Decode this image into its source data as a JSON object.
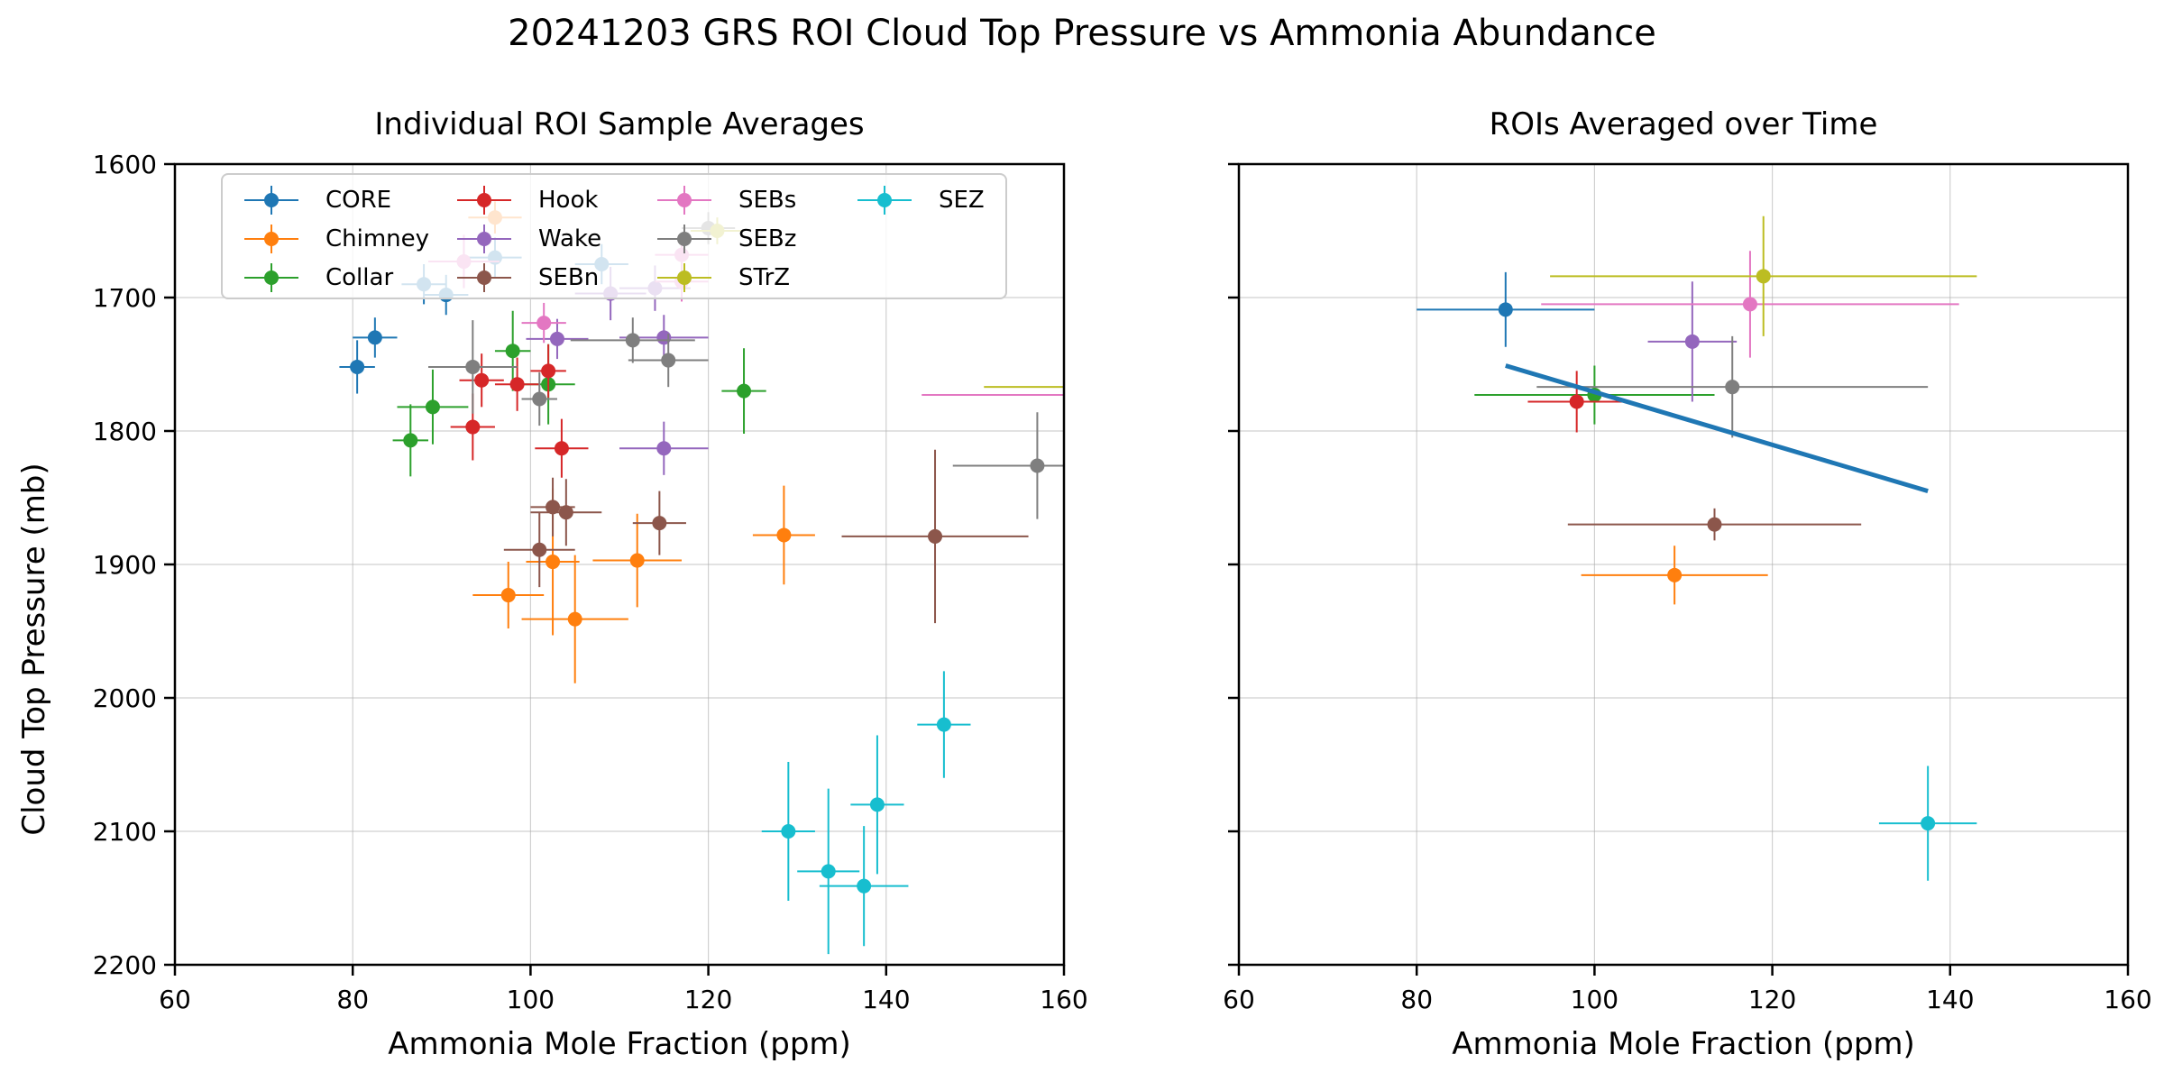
{
  "figure": {
    "suptitle": "20241203 GRS ROI Cloud Top Pressure vs Ammonia Abundance"
  },
  "colors": {
    "CORE": "#1f77b4",
    "Chimney": "#ff7f0e",
    "Collar": "#2ca02c",
    "Hook": "#d62728",
    "Wake": "#9467bd",
    "SEBn": "#8c564b",
    "SEBs": "#e377c2",
    "SEBz": "#7f7f7f",
    "STrZ": "#bcbd22",
    "SEZ": "#17becf",
    "fit": "#1f77b4"
  },
  "legend": {
    "placement": "top-left",
    "columns": 4,
    "entries": [
      "CORE",
      "Chimney",
      "Collar",
      "Hook",
      "Wake",
      "SEBn",
      "SEBs",
      "SEBz",
      "STrZ",
      "SEZ"
    ]
  },
  "chart_data": [
    {
      "type": "scatter",
      "title": "Individual ROI Sample Averages",
      "xlabel": "Ammonia Mole Fraction (ppm)",
      "ylabel": "Cloud Top Pressure (mb)",
      "xlim": [
        60,
        160
      ],
      "ylim": [
        2200,
        1600
      ],
      "xticks": [
        "60",
        "80",
        "100",
        "120",
        "140",
        "160"
      ],
      "yticks": [
        "1600",
        "1700",
        "1800",
        "1900",
        "2000",
        "2100",
        "2200"
      ],
      "grid": true,
      "series": [
        {
          "name": "CORE",
          "points": [
            {
              "x": 80.5,
              "y": 1752,
              "xerr": 2,
              "yerr": 20
            },
            {
              "x": 82.5,
              "y": 1730,
              "xerr": 2.5,
              "yerr": 15
            },
            {
              "x": 88,
              "y": 1690,
              "xerr": 2.5,
              "yerr": 15
            },
            {
              "x": 90.5,
              "y": 1698,
              "xerr": 2.5,
              "yerr": 15
            },
            {
              "x": 96,
              "y": 1670,
              "xerr": 3,
              "yerr": 15
            },
            {
              "x": 108,
              "y": 1675,
              "xerr": 3,
              "yerr": 15
            }
          ]
        },
        {
          "name": "Chimney",
          "points": [
            {
              "x": 97.5,
              "y": 1923,
              "xerr": 4,
              "yerr": 25
            },
            {
              "x": 102.5,
              "y": 1898,
              "xerr": 3,
              "yerr": 55
            },
            {
              "x": 105,
              "y": 1941,
              "xerr": 6,
              "yerr": 48
            },
            {
              "x": 112,
              "y": 1897,
              "xerr": 5,
              "yerr": 35
            },
            {
              "x": 128.5,
              "y": 1878,
              "xerr": 3.5,
              "yerr": 37
            },
            {
              "x": 96,
              "y": 1640,
              "xerr": 3,
              "yerr": 12
            }
          ]
        },
        {
          "name": "Collar",
          "points": [
            {
              "x": 86.5,
              "y": 1807,
              "xerr": 2,
              "yerr": 27
            },
            {
              "x": 89,
              "y": 1782,
              "xerr": 4,
              "yerr": 28
            },
            {
              "x": 98,
              "y": 1740,
              "xerr": 2,
              "yerr": 30
            },
            {
              "x": 102,
              "y": 1765,
              "xerr": 3,
              "yerr": 30
            },
            {
              "x": 124,
              "y": 1770,
              "xerr": 2.5,
              "yerr": 32
            }
          ]
        },
        {
          "name": "Hook",
          "points": [
            {
              "x": 93.5,
              "y": 1797,
              "xerr": 2.5,
              "yerr": 25
            },
            {
              "x": 94.5,
              "y": 1762,
              "xerr": 2.5,
              "yerr": 20
            },
            {
              "x": 98.5,
              "y": 1765,
              "xerr": 2.5,
              "yerr": 20
            },
            {
              "x": 102,
              "y": 1755,
              "xerr": 2,
              "yerr": 20
            },
            {
              "x": 103.5,
              "y": 1813,
              "xerr": 3,
              "yerr": 22
            }
          ]
        },
        {
          "name": "Wake",
          "points": [
            {
              "x": 103,
              "y": 1731,
              "xerr": 3.5,
              "yerr": 15
            },
            {
              "x": 115,
              "y": 1813,
              "xerr": 5,
              "yerr": 20
            },
            {
              "x": 115,
              "y": 1730,
              "xerr": 5,
              "yerr": 17
            },
            {
              "x": 109,
              "y": 1697,
              "xerr": 4,
              "yerr": 20
            },
            {
              "x": 114,
              "y": 1693,
              "xerr": 4,
              "yerr": 17
            }
          ]
        },
        {
          "name": "SEBn",
          "points": [
            {
              "x": 101,
              "y": 1889,
              "xerr": 4,
              "yerr": 28
            },
            {
              "x": 102.5,
              "y": 1857,
              "xerr": 2.5,
              "yerr": 22
            },
            {
              "x": 104,
              "y": 1861,
              "xerr": 4,
              "yerr": 25
            },
            {
              "x": 114.5,
              "y": 1869,
              "xerr": 3,
              "yerr": 24
            },
            {
              "x": 145.5,
              "y": 1879,
              "xerr": 10.5,
              "yerr": 65
            }
          ]
        },
        {
          "name": "SEBs",
          "points": [
            {
              "x": 92.5,
              "y": 1673,
              "xerr": 4,
              "yerr": 20
            },
            {
              "x": 101.5,
              "y": 1719,
              "xerr": 2.5,
              "yerr": 15
            },
            {
              "x": 117,
              "y": 1668,
              "xerr": 3,
              "yerr": 15
            },
            {
              "x": 117,
              "y": 1688,
              "xerr": 3,
              "yerr": 15
            },
            {
              "x": 165,
              "y": 1773,
              "xerr": 21,
              "yerr": 20
            }
          ]
        },
        {
          "name": "SEBz",
          "points": [
            {
              "x": 93.5,
              "y": 1752,
              "xerr": 5,
              "yerr": 35
            },
            {
              "x": 101,
              "y": 1776,
              "xerr": 2,
              "yerr": 20
            },
            {
              "x": 111.5,
              "y": 1732,
              "xerr": 7,
              "yerr": 17
            },
            {
              "x": 115.5,
              "y": 1747,
              "xerr": 4.5,
              "yerr": 20
            },
            {
              "x": 157,
              "y": 1826,
              "xerr": 9.5,
              "yerr": 40
            },
            {
              "x": 120,
              "y": 1648,
              "xerr": 3,
              "yerr": 12
            }
          ]
        },
        {
          "name": "STrZ",
          "points": [
            {
              "x": 165,
              "y": 1767,
              "xerr": 14,
              "yerr": 12
            },
            {
              "x": 121,
              "y": 1650,
              "xerr": 3,
              "yerr": 10
            }
          ]
        },
        {
          "name": "SEZ",
          "points": [
            {
              "x": 129,
              "y": 2100,
              "xerr": 3,
              "yerr": 52
            },
            {
              "x": 133.5,
              "y": 2130,
              "xerr": 3.5,
              "yerr": 62
            },
            {
              "x": 137.5,
              "y": 2141,
              "xerr": 5,
              "yerr": 45
            },
            {
              "x": 139,
              "y": 2080,
              "xerr": 3,
              "yerr": 52
            },
            {
              "x": 146.5,
              "y": 2020,
              "xerr": 3,
              "yerr": 40
            }
          ]
        }
      ]
    },
    {
      "type": "scatter",
      "title": "ROIs Averaged over Time",
      "xlabel": "Ammonia Mole Fraction (ppm)",
      "ylabel": "",
      "xlim": [
        60,
        160
      ],
      "ylim": [
        2200,
        1600
      ],
      "xticks": [
        "60",
        "80",
        "100",
        "120",
        "140",
        "160"
      ],
      "yticks": [],
      "grid": true,
      "series": [
        {
          "name": "CORE",
          "points": [
            {
              "x": 90,
              "y": 1709,
              "xerr": 10,
              "yerr": 28
            }
          ]
        },
        {
          "name": "Chimney",
          "points": [
            {
              "x": 109,
              "y": 1908,
              "xerr": 10.5,
              "yerr": 22
            }
          ]
        },
        {
          "name": "Collar",
          "points": [
            {
              "x": 100,
              "y": 1773,
              "xerr": 13.5,
              "yerr": 22
            }
          ]
        },
        {
          "name": "Hook",
          "points": [
            {
              "x": 98,
              "y": 1778,
              "xerr": 5.5,
              "yerr": 23
            }
          ]
        },
        {
          "name": "Wake",
          "points": [
            {
              "x": 111,
              "y": 1733,
              "xerr": 5,
              "yerr": 45
            }
          ]
        },
        {
          "name": "SEBn",
          "points": [
            {
              "x": 113.5,
              "y": 1870,
              "xerr": 16.5,
              "yerr": 12
            }
          ]
        },
        {
          "name": "SEBs",
          "points": [
            {
              "x": 117.5,
              "y": 1705,
              "xerr": 23.5,
              "yerr": 40
            }
          ]
        },
        {
          "name": "SEBz",
          "points": [
            {
              "x": 115.5,
              "y": 1767,
              "xerr": 22,
              "yerr": 38
            }
          ]
        },
        {
          "name": "STrZ",
          "points": [
            {
              "x": 119,
              "y": 1684,
              "xerr": 24,
              "yerr": 45
            }
          ]
        },
        {
          "name": "SEZ",
          "points": [
            {
              "x": 137.5,
              "y": 2094,
              "xerr": 5.5,
              "yerr": 43
            }
          ]
        }
      ],
      "fit_line": {
        "x": [
          90,
          137.5
        ],
        "y": [
          1751,
          1845
        ]
      }
    }
  ]
}
